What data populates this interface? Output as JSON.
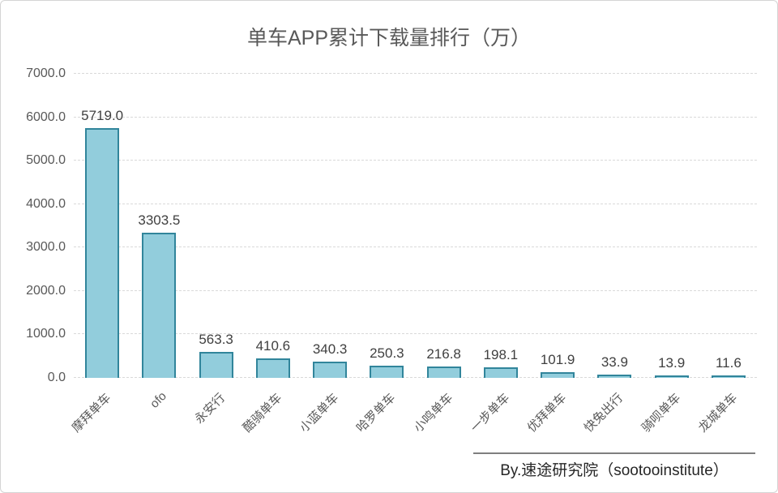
{
  "title": "单车APP累计下载量排行（万）",
  "attribution": "By.速途研究院（sootooinstitute）",
  "colors": {
    "bar_fill": "#92CDDC",
    "bar_border": "#31859B",
    "grid": "#D9D9D9",
    "title_text": "#595959",
    "axis_text": "#595959",
    "value_text": "#404040",
    "attribution_text": "#262626"
  },
  "chart_data": {
    "type": "bar",
    "title": "单车APP累计下载量排行（万）",
    "categories": [
      "摩拜单车",
      "ofo",
      "永安行",
      "酷骑单车",
      "小蓝单车",
      "哈罗单车",
      "小鸣单车",
      "一步单车",
      "优拜单车",
      "快兔出行",
      "骑呗单车",
      "龙城单车"
    ],
    "values": [
      5719.0,
      3303.5,
      563.3,
      410.6,
      340.3,
      250.3,
      216.8,
      198.1,
      101.9,
      33.9,
      13.9,
      11.6
    ],
    "value_labels": [
      "5719.0",
      "3303.5",
      "563.3",
      "410.6",
      "340.3",
      "250.3",
      "216.8",
      "198.1",
      "101.9",
      "33.9",
      "13.9",
      "11.6"
    ],
    "xlabel": "",
    "ylabel": "",
    "ylim": [
      0,
      7000
    ],
    "ytick_step": 1000,
    "ytick_labels": [
      "0.0",
      "1000.0",
      "2000.0",
      "3000.0",
      "4000.0",
      "5000.0",
      "6000.0",
      "7000.0"
    ],
    "grid": true,
    "legend_position": "none"
  }
}
